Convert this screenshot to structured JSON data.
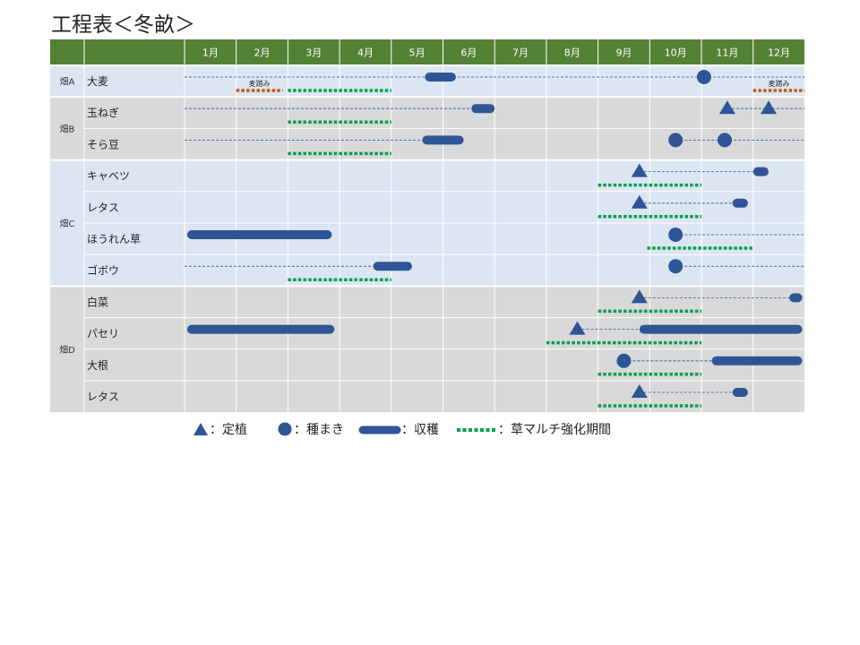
{
  "title": "工程表＜冬畝＞",
  "months": [
    "1月",
    "2月",
    "3月",
    "4月",
    "5月",
    "6月",
    "7月",
    "8月",
    "9月",
    "10月",
    "11月",
    "12月"
  ],
  "colors": {
    "header": "#548235",
    "band_light": "#dce6f2",
    "band_gray": "#d9d9d9",
    "mark": "#2f5597",
    "weed_mulch": "#00a04b",
    "wheat_tread": "#c55a11"
  },
  "fields": [
    {
      "name": "畑A",
      "shade": "light",
      "crops": [
        {
          "name": "大麦",
          "lines": [
            [
              0,
              12
            ]
          ],
          "harvest": [
            [
              4.65,
              5.25
            ]
          ],
          "sow": [
            10.05
          ],
          "plant": [],
          "mulch": [
            [
              2,
              4
            ]
          ],
          "tread": [
            [
              1,
              1.9
            ],
            [
              11,
              12
            ]
          ],
          "tread_label": "麦踏み"
        }
      ]
    },
    {
      "name": "畑B",
      "shade": "gray",
      "crops": [
        {
          "name": "玉ねぎ",
          "lines": [
            [
              0,
              5.7
            ],
            [
              10.5,
              12
            ]
          ],
          "harvest": [
            [
              5.55,
              6
            ]
          ],
          "sow": [],
          "plant": [
            10.5,
            11.3
          ],
          "mulch": [
            [
              2,
              4
            ]
          ],
          "tread": []
        },
        {
          "name": "そら豆",
          "lines": [
            [
              0,
              4.6
            ],
            [
              9.5,
              12
            ]
          ],
          "harvest": [
            [
              4.6,
              5.4
            ]
          ],
          "sow": [
            9.5,
            10.45
          ],
          "plant": [],
          "mulch": [
            [
              2,
              4
            ]
          ],
          "tread": []
        }
      ]
    },
    {
      "name": "畑C",
      "shade": "light",
      "crops": [
        {
          "name": "キャベツ",
          "lines": [
            [
              8.8,
              11
            ]
          ],
          "harvest": [
            [
              11,
              11.3
            ]
          ],
          "sow": [],
          "plant": [
            8.8
          ],
          "mulch": [
            [
              8,
              10
            ]
          ],
          "tread": []
        },
        {
          "name": "レタス",
          "lines": [
            [
              8.8,
              10.6
            ]
          ],
          "harvest": [
            [
              10.6,
              10.9
            ]
          ],
          "sow": [],
          "plant": [
            8.8
          ],
          "mulch": [
            [
              8,
              10
            ]
          ],
          "tread": []
        },
        {
          "name": "ほうれん草",
          "lines": [
            [
              9.5,
              12
            ]
          ],
          "harvest": [
            [
              0.05,
              2.85
            ]
          ],
          "sow": [
            9.5
          ],
          "plant": [],
          "mulch": [
            [
              8.95,
              11
            ]
          ],
          "tread": []
        },
        {
          "name": "ゴボウ",
          "lines": [
            [
              0,
              3.65
            ],
            [
              9.5,
              12
            ]
          ],
          "harvest": [
            [
              3.65,
              4.4
            ]
          ],
          "sow": [
            9.5
          ],
          "plant": [],
          "mulch": [
            [
              2,
              4
            ]
          ],
          "tread": []
        }
      ]
    },
    {
      "name": "畑D",
      "shade": "gray",
      "crops": [
        {
          "name": "白菜",
          "lines": [
            [
              8.8,
              11.7
            ]
          ],
          "harvest": [
            [
              11.7,
              11.95
            ]
          ],
          "sow": [],
          "plant": [
            8.8
          ],
          "mulch": [
            [
              8,
              10
            ]
          ],
          "tread": []
        },
        {
          "name": "パセリ",
          "lines": [
            [
              7.6,
              8.8
            ]
          ],
          "harvest": [
            [
              0.05,
              2.9
            ],
            [
              8.8,
              11.95
            ]
          ],
          "sow": [],
          "plant": [
            7.6
          ],
          "mulch": [
            [
              7,
              10
            ]
          ],
          "tread": []
        },
        {
          "name": "大根",
          "lines": [
            [
              8.5,
              10.2
            ]
          ],
          "harvest": [
            [
              10.2,
              11.95
            ]
          ],
          "sow": [
            8.5
          ],
          "plant": [],
          "mulch": [
            [
              8,
              10
            ]
          ],
          "tread": []
        },
        {
          "name": "レタス",
          "lines": [
            [
              8.8,
              10.6
            ]
          ],
          "harvest": [
            [
              10.6,
              10.9
            ]
          ],
          "sow": [],
          "plant": [
            8.8
          ],
          "mulch": [
            [
              8,
              10
            ]
          ],
          "tread": []
        }
      ]
    }
  ],
  "legend": {
    "plant": "：定植",
    "sow": "：種まき",
    "harvest": "：収穫",
    "mulch": "：草マルチ強化期間"
  }
}
